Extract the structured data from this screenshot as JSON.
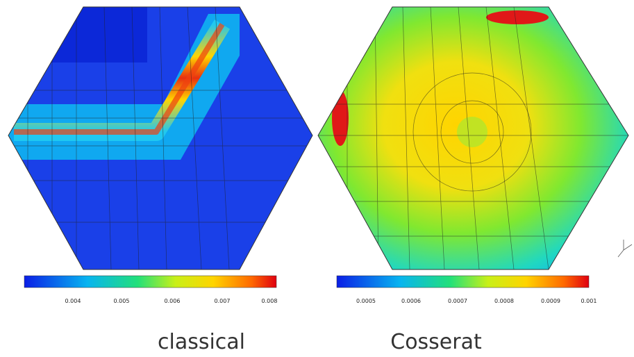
{
  "panels": [
    {
      "caption": "classical",
      "colorbar": {
        "ticks": [
          "0.004",
          "0.005",
          "0.006",
          "0.007",
          "0.008"
        ]
      }
    },
    {
      "caption": "Cosserat",
      "colorbar": {
        "ticks": [
          "0.0005",
          "0.0006",
          "0.0007",
          "0.0008",
          "0.0009",
          "0.001"
        ]
      }
    }
  ]
}
